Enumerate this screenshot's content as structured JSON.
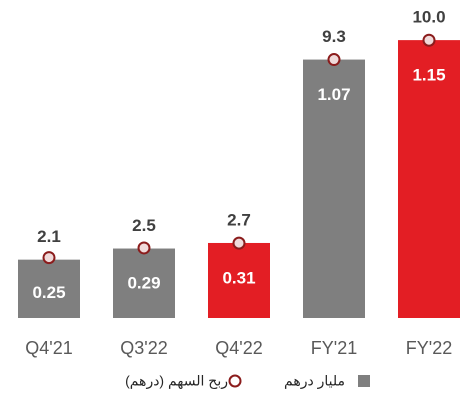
{
  "chart_data": {
    "type": "bar",
    "categories": [
      "Q4'21",
      "Q3'22",
      "Q4'22",
      "FY'21",
      "FY'22"
    ],
    "series": [
      {
        "name": "مليار درهم",
        "color": "#7f7f7f",
        "colors": [
          "#7f7f7f",
          "#7f7f7f",
          "#e31e24",
          "#7f7f7f",
          "#e31e24"
        ],
        "values": [
          2.1,
          2.5,
          2.7,
          9.3,
          10.0
        ],
        "value_labels": [
          "2.1",
          "2.5",
          "2.7",
          "9.3",
          "10.0"
        ]
      },
      {
        "name": "ربح السهم (درهم)",
        "color": "#8b1c1c",
        "axis": "y2",
        "values": [
          0.25,
          0.29,
          0.31,
          1.07,
          1.15
        ]
      }
    ],
    "ylim": [
      0,
      11.3
    ],
    "y2lim": [
      0,
      1.3
    ]
  }
}
